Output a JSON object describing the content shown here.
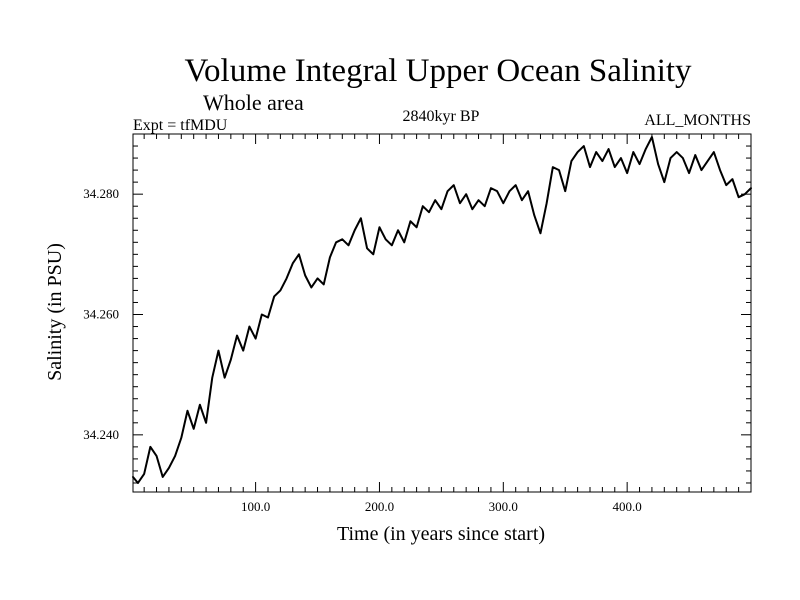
{
  "chart_data": {
    "type": "line",
    "title": "Volume Integral Upper Ocean Salinity",
    "subtitle": "Whole area",
    "experiment_label": "Expt = tfMDU",
    "period_label": "2840kyr BP",
    "months_label": "ALL_MONTHS",
    "xlabel": "Time (in years since start)",
    "ylabel": "Salinity (in PSU)",
    "xlim": [
      1,
      500
    ],
    "ylim": [
      34.2305,
      34.29
    ],
    "x_major_ticks": [
      100,
      200,
      300,
      400
    ],
    "x_tick_labels": [
      "100.0",
      "200.0",
      "300.0",
      "400.0"
    ],
    "y_major_ticks": [
      34.24,
      34.26,
      34.28
    ],
    "y_tick_labels": [
      "34.240",
      "34.260",
      "34.280"
    ],
    "series": [
      {
        "name": "Volume Integral Upper Ocean Salinity",
        "x": [
          1,
          5,
          10,
          15,
          20,
          25,
          30,
          35,
          40,
          45,
          50,
          55,
          60,
          65,
          70,
          75,
          80,
          85,
          90,
          95,
          100,
          105,
          110,
          115,
          120,
          125,
          130,
          135,
          140,
          145,
          150,
          155,
          160,
          165,
          170,
          175,
          180,
          185,
          190,
          195,
          200,
          205,
          210,
          215,
          220,
          225,
          230,
          235,
          240,
          245,
          250,
          255,
          260,
          265,
          270,
          275,
          280,
          285,
          290,
          295,
          300,
          305,
          310,
          315,
          320,
          325,
          330,
          335,
          340,
          345,
          350,
          355,
          360,
          365,
          370,
          375,
          380,
          385,
          390,
          395,
          400,
          405,
          410,
          415,
          420,
          425,
          430,
          435,
          440,
          445,
          450,
          455,
          460,
          465,
          470,
          475,
          480,
          485,
          490,
          495,
          500
        ],
        "values": [
          34.233,
          34.232,
          34.2335,
          34.238,
          34.2365,
          34.233,
          34.2345,
          34.2365,
          34.2395,
          34.244,
          34.241,
          34.245,
          34.242,
          34.2495,
          34.254,
          34.2495,
          34.2525,
          34.2565,
          34.254,
          34.258,
          34.256,
          34.26,
          34.2595,
          34.263,
          34.264,
          34.266,
          34.2685,
          34.27,
          34.2665,
          34.2645,
          34.266,
          34.265,
          34.2695,
          34.272,
          34.2725,
          34.2715,
          34.274,
          34.276,
          34.271,
          34.27,
          34.2745,
          34.2725,
          34.2715,
          34.274,
          34.272,
          34.2755,
          34.2745,
          34.278,
          34.277,
          34.279,
          34.2775,
          34.2805,
          34.2815,
          34.2785,
          34.28,
          34.2775,
          34.279,
          34.278,
          34.281,
          34.2805,
          34.2785,
          34.2805,
          34.2815,
          34.279,
          34.2805,
          34.2765,
          34.2735,
          34.2785,
          34.2845,
          34.284,
          34.2805,
          34.2855,
          34.287,
          34.288,
          34.2845,
          34.287,
          34.2855,
          34.2875,
          34.2845,
          34.286,
          34.2835,
          34.287,
          34.285,
          34.2875,
          34.2895,
          34.285,
          34.282,
          34.286,
          34.287,
          34.286,
          34.2835,
          34.2865,
          34.284,
          34.2855,
          34.287,
          34.284,
          34.2815,
          34.2825,
          34.2795,
          34.28,
          34.281
        ]
      }
    ]
  }
}
